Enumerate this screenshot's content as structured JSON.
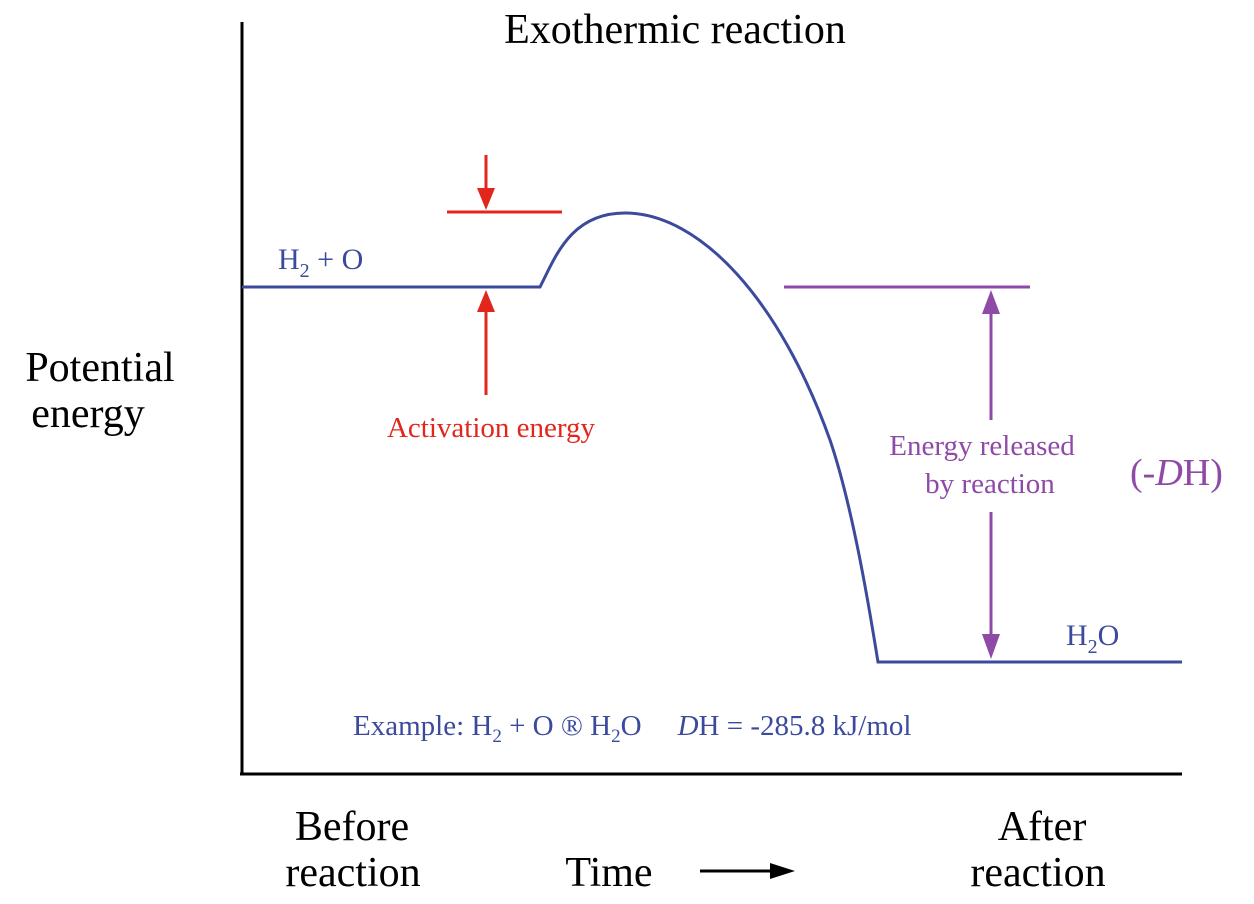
{
  "title": "Exothermic reaction",
  "y_axis_label": {
    "line1": "Potential",
    "line2": "energy"
  },
  "x_axis": {
    "left_label": {
      "line1": "Before",
      "line2": "reaction"
    },
    "center_label": "Time",
    "right_label": {
      "line1": "After",
      "line2": "reaction"
    }
  },
  "reactants": {
    "base": "H",
    "sub": "2",
    "rest": " + O"
  },
  "product": {
    "base": "H",
    "sub": "2",
    "rest": "O"
  },
  "activation_energy_label": "Activation energy",
  "energy_released_label": {
    "line1": "Energy released",
    "line2": "by reaction"
  },
  "delta_h_symbol": {
    "open": "(-",
    "italic": "D",
    "close": "H)"
  },
  "example": {
    "prefix": "Example: H",
    "sub1": "2",
    "mid": " + O ® H",
    "sub2": "2",
    "after": "O",
    "dh_italic": "D",
    "dh_rest": "H = -285.8 kJ/mol"
  },
  "colors": {
    "curve": "#3b4a9c",
    "activation": "#e3261c",
    "released": "#8e4aa6",
    "axis": "#000000"
  }
}
